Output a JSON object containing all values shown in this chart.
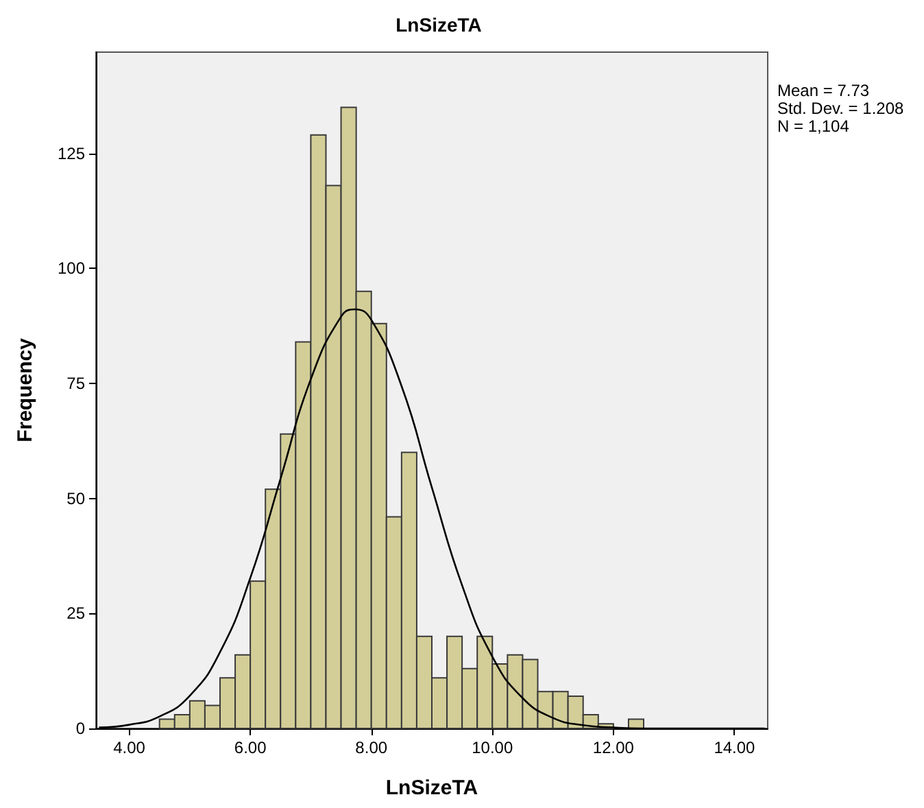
{
  "chart_data": {
    "type": "histogram",
    "title": "LnSizeTA",
    "xlabel": "LnSizeTA",
    "ylabel": "Frequency",
    "annotations": [
      "Mean = 7.73",
      "Std. Dev. = 1.208",
      "N = 1,104"
    ],
    "bins": [
      4.5,
      4.75,
      5,
      5.25,
      5.5,
      5.75,
      6,
      6.25,
      6.5,
      6.75,
      7,
      7.25,
      7.5,
      7.75,
      8,
      8.25,
      8.5,
      8.75,
      9,
      9.25,
      9.5,
      9.75,
      10,
      10.25,
      10.5,
      10.75,
      11,
      11.25,
      11.5,
      11.75,
      12,
      12.25,
      12.5
    ],
    "values": [
      2,
      3,
      6,
      5,
      11,
      16,
      32,
      52,
      64,
      84,
      129,
      118,
      135,
      95,
      88,
      46,
      60,
      20,
      11,
      20,
      13,
      20,
      14,
      16,
      15,
      8,
      8,
      7,
      3,
      1,
      0,
      2
    ],
    "color": "#d3ce98",
    "series": [
      {
        "type": "line",
        "color": "#000000",
        "x": [
          3.5,
          4,
          4.5,
          5,
          5.5,
          6,
          6.5,
          7,
          7.5,
          7.73,
          8,
          8.5,
          9,
          9.5,
          10,
          10.5,
          11,
          11.5,
          12,
          12.5,
          13,
          14,
          14.5
        ],
        "values": [
          0.2,
          0.8,
          2.6,
          7.1,
          16.6,
          32.7,
          54.3,
          75.9,
          89.5,
          91.1,
          88.8,
          74.4,
          52.4,
          31.1,
          15.6,
          6.6,
          2.3,
          0.7,
          0.2,
          0,
          0,
          0,
          0
        ]
      }
    ],
    "xlim": [
      3.45,
      14.55
    ],
    "xticks": [
      {
        "value": 4,
        "label": "4.00"
      },
      {
        "value": 6,
        "label": "6.00"
      },
      {
        "value": 8,
        "label": "8.00"
      },
      {
        "value": 10,
        "label": "10.00"
      },
      {
        "value": 12,
        "label": "12.00"
      },
      {
        "value": 14,
        "label": "14.00"
      }
    ],
    "ylim": [
      0,
      147
    ],
    "yticks": [
      0,
      25,
      50,
      75,
      100,
      125
    ],
    "grid": false,
    "marker": "none",
    "line_style": "solid"
  }
}
